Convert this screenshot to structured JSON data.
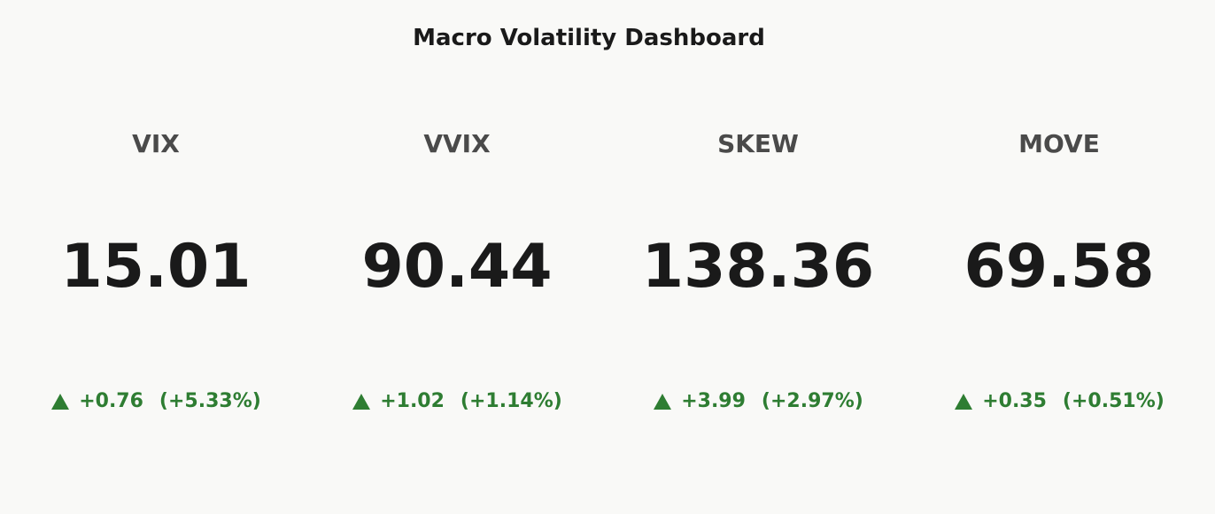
{
  "header": {
    "title": "Macro Volatility Dashboard"
  },
  "cards": [
    {
      "name": "VIX",
      "value": "15.01",
      "change": "+0.76",
      "change_pct": "(+5.33%)"
    },
    {
      "name": "VVIX",
      "value": "90.44",
      "change": "+1.02",
      "change_pct": "(+1.14%)"
    },
    {
      "name": "SKEW",
      "value": "138.36",
      "change": "+3.99",
      "change_pct": "(+2.97%)"
    },
    {
      "name": "MOVE",
      "value": "69.58",
      "change": "+0.35",
      "change_pct": "(+0.51%)"
    }
  ]
}
